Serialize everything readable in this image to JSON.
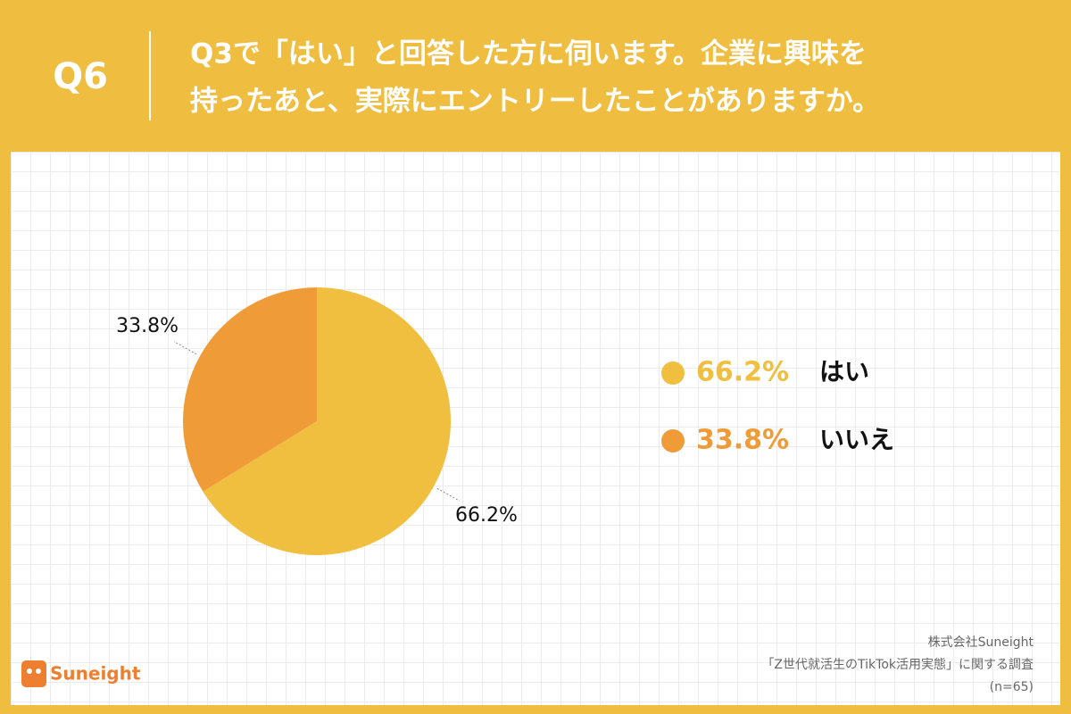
{
  "header": {
    "label": "Q6",
    "question": [
      "Q3で「はい」と回答した方に伺います。企業に興味を",
      "持ったあと、実際にエントリーしたことがありますか。"
    ]
  },
  "chart_data": {
    "type": "pie",
    "categories": [
      "はい",
      "いいえ"
    ],
    "values": [
      66.2,
      33.8
    ],
    "value_labels": [
      "66.2%",
      "33.8%"
    ],
    "colors": [
      "#f0bf40",
      "#ef9c38"
    ]
  },
  "footer": {
    "logo": "Suneight",
    "source": [
      "株式会社Suneight",
      "「Z世代就活生のTikTok活用実態」に関する調査",
      "(n=65)"
    ]
  }
}
